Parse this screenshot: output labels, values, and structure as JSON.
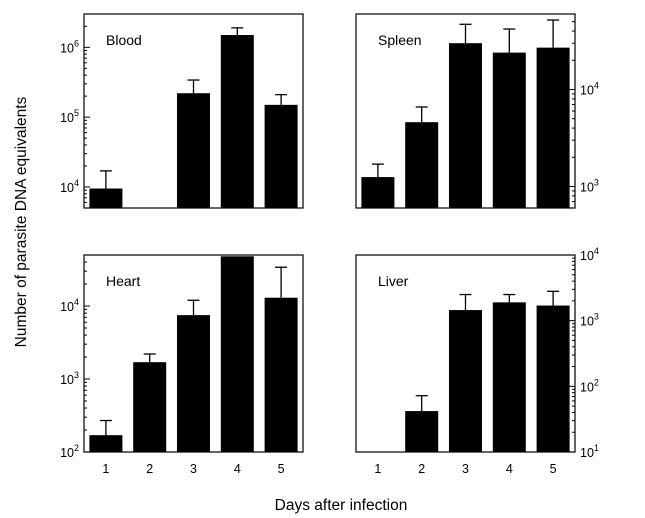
{
  "figure": {
    "ylabel": "Number of parasite DNA equivalents",
    "xlabel": "Days after infection"
  },
  "chart_data": [
    {
      "type": "bar",
      "title": "Blood",
      "scale": "log",
      "yaxis_side": "left",
      "ylim": [
        5000,
        3000000
      ],
      "yticks": [
        {
          "value": 10000,
          "base": "10",
          "exp": "4"
        },
        {
          "value": 100000,
          "base": "10",
          "exp": "5"
        },
        {
          "value": 1000000,
          "base": "10",
          "exp": "6"
        }
      ],
      "categories": [
        "1",
        "2",
        "3",
        "4",
        "5"
      ],
      "show_category_labels": false,
      "values": [
        9500,
        null,
        220000,
        1500000,
        150000
      ],
      "errors_upper": [
        17000,
        null,
        340000,
        1900000,
        210000
      ]
    },
    {
      "type": "bar",
      "title": "Spleen",
      "scale": "log",
      "yaxis_side": "right",
      "ylim": [
        600,
        60000
      ],
      "yticks": [
        {
          "value": 1000,
          "base": "10",
          "exp": "3"
        },
        {
          "value": 10000,
          "base": "10",
          "exp": "4"
        }
      ],
      "categories": [
        "1",
        "2",
        "3",
        "4",
        "5"
      ],
      "show_category_labels": false,
      "values": [
        1250,
        4600,
        30000,
        24000,
        27000
      ],
      "errors_upper": [
        1700,
        6600,
        47000,
        42000,
        52000
      ]
    },
    {
      "type": "bar",
      "title": "Heart",
      "scale": "log",
      "yaxis_side": "left",
      "ylim": [
        100,
        50000
      ],
      "yticks": [
        {
          "value": 100,
          "base": "10",
          "exp": "2"
        },
        {
          "value": 1000,
          "base": "10",
          "exp": "3"
        },
        {
          "value": 10000,
          "base": "10",
          "exp": "4"
        }
      ],
      "categories": [
        "1",
        "2",
        "3",
        "4",
        "5"
      ],
      "show_category_labels": true,
      "values": [
        170,
        1700,
        7500,
        48000,
        13000
      ],
      "errors_upper": [
        270,
        2200,
        12000,
        48000,
        34000
      ]
    },
    {
      "type": "bar",
      "title": "Liver",
      "scale": "log",
      "yaxis_side": "right",
      "ylim": [
        10,
        10000
      ],
      "yticks": [
        {
          "value": 10,
          "base": "10",
          "exp": "1"
        },
        {
          "value": 100,
          "base": "10",
          "exp": "2"
        },
        {
          "value": 1000,
          "base": "10",
          "exp": "3"
        },
        {
          "value": 10000,
          "base": "10",
          "exp": "4"
        }
      ],
      "categories": [
        "1",
        "2",
        "3",
        "4",
        "5"
      ],
      "show_category_labels": true,
      "values": [
        null,
        42,
        1450,
        1900,
        1700
      ],
      "errors_upper": [
        null,
        72,
        2500,
        2500,
        2800
      ]
    }
  ]
}
